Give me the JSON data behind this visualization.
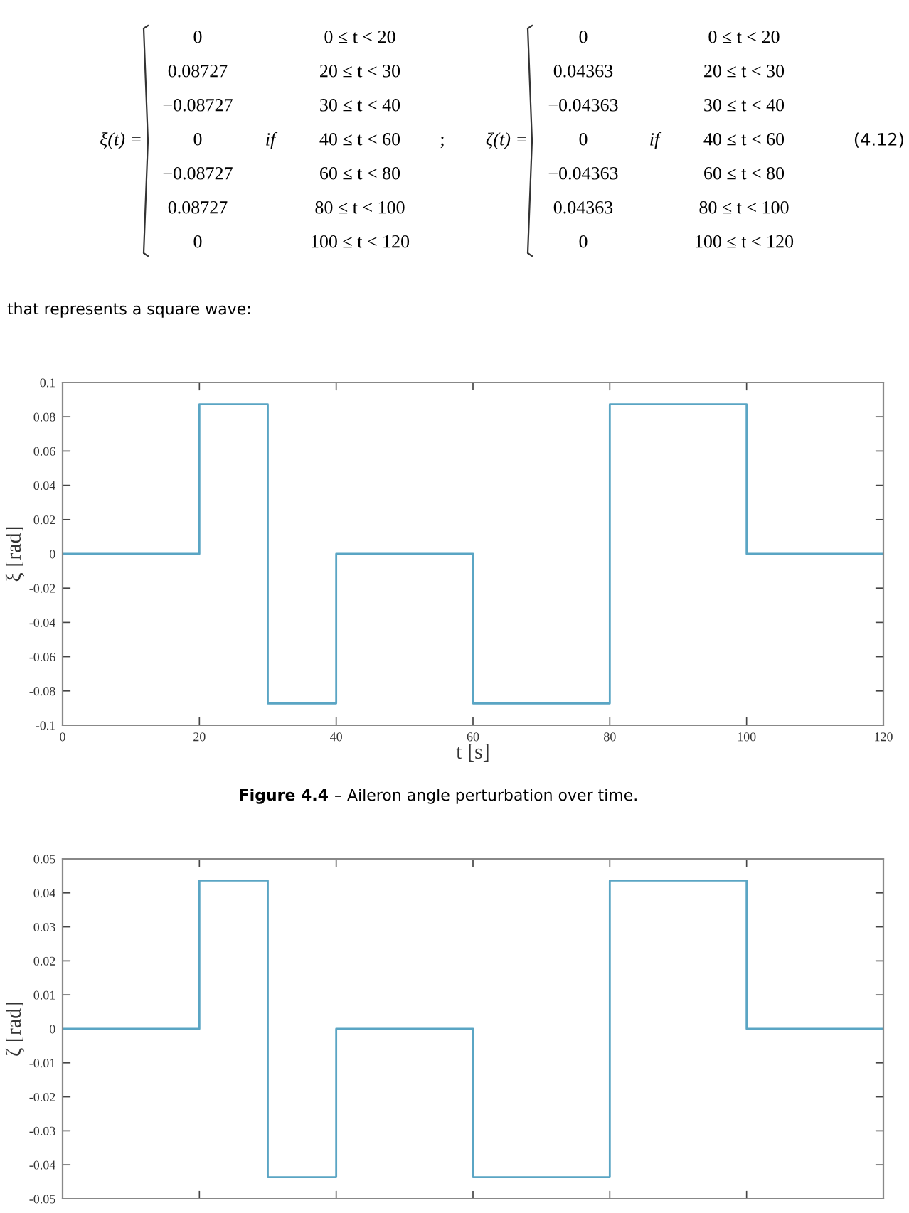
{
  "chart_data": [
    {
      "type": "step",
      "xlabel": "t [s]",
      "ylabel": "ξ [rad]",
      "x": [
        0,
        20,
        30,
        40,
        60,
        80,
        100,
        120
      ],
      "series": [
        {
          "color": "#5aa5c4",
          "values": [
            0,
            0.08727,
            -0.08727,
            0,
            -0.08727,
            0.08727,
            0,
            0
          ]
        }
      ],
      "xlim": [
        0,
        120
      ],
      "xticks": [
        0,
        20,
        40,
        60,
        80,
        100,
        120
      ],
      "ylim": [
        -0.1,
        0.1
      ],
      "yticks": [
        -0.1,
        -0.08,
        -0.06,
        -0.04,
        -0.02,
        0,
        0.02,
        0.04,
        0.06,
        0.08,
        0.1
      ],
      "grid": false,
      "marker": "none",
      "line_style": "solid",
      "annotations": [
        "ξ(t) =",
        "0",
        "0.08727",
        "−0.08727",
        "0",
        "−0.08727",
        "0.08727",
        "0",
        "if",
        "0 ≤ t < 20",
        "20 ≤ t < 30",
        "30 ≤ t < 40",
        "40 ≤ t < 60",
        "60 ≤ t < 80",
        "80 ≤ t < 100",
        "100 ≤ t < 120",
        ";",
        "ζ(t) =",
        "0",
        "0.04363",
        "−0.04363",
        "0",
        "−0.04363",
        "0.04363",
        "0",
        "if",
        "0 ≤ t < 20",
        "20 ≤ t < 30",
        "30 ≤ t < 40",
        "40 ≤ t < 60",
        "60 ≤ t < 80",
        "80 ≤ t < 100",
        "100 ≤ t < 120",
        "(4.12)",
        "that represents a square wave:",
        "Figure 4.4",
        "– Aileron angle perturbation over time."
      ]
    },
    {
      "type": "step",
      "ylabel": "ζ [rad]",
      "x": [
        0,
        20,
        30,
        40,
        60,
        80,
        100,
        120
      ],
      "series": [
        {
          "color": "#5aa5c4",
          "values": [
            0,
            0.04363,
            -0.04363,
            0,
            -0.04363,
            0.04363,
            0,
            0
          ]
        }
      ],
      "xlim": [
        0,
        120
      ],
      "ylim": [
        -0.05,
        0.05
      ],
      "yticks": [
        -0.05,
        -0.04,
        -0.03,
        -0.02,
        -0.01,
        0,
        0.01,
        0.02,
        0.03,
        0.04,
        0.05
      ],
      "tick_labels": "y",
      "grid": false,
      "marker": "none",
      "line_style": "solid"
    }
  ]
}
